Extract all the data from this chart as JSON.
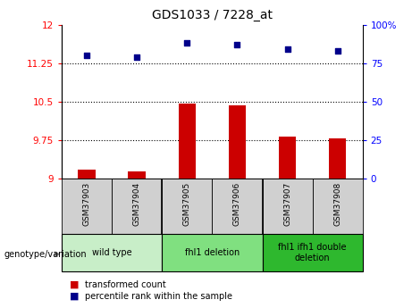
{
  "title": "GDS1033 / 7228_at",
  "samples": [
    "GSM37903",
    "GSM37904",
    "GSM37905",
    "GSM37906",
    "GSM37907",
    "GSM37908"
  ],
  "bar_values": [
    9.18,
    9.14,
    10.46,
    10.42,
    9.82,
    9.79
  ],
  "scatter_values": [
    80,
    79,
    88,
    87,
    84,
    83
  ],
  "bar_bottom": 9.0,
  "ylim_left": [
    9.0,
    12.0
  ],
  "ylim_right": [
    0,
    100
  ],
  "yticks_left": [
    9.0,
    9.75,
    10.5,
    11.25,
    12.0
  ],
  "yticks_right": [
    0,
    25,
    50,
    75,
    100
  ],
  "hlines": [
    9.75,
    10.5,
    11.25
  ],
  "bar_color": "#cc0000",
  "scatter_color": "#00008b",
  "group_colors": [
    "#c8eec8",
    "#80e080",
    "#2eb82e"
  ],
  "group_labels": [
    "wild type",
    "fhl1 deletion",
    "fhl1 ifh1 double\ndeletion"
  ],
  "group_ranges": [
    [
      0,
      1
    ],
    [
      2,
      3
    ],
    [
      4,
      5
    ]
  ],
  "legend_items": [
    {
      "label": "transformed count",
      "color": "#cc0000"
    },
    {
      "label": "percentile rank within the sample",
      "color": "#00008b"
    }
  ],
  "sample_box_color": "#d0d0d0",
  "fig_width": 4.61,
  "fig_height": 3.45,
  "dpi": 100
}
